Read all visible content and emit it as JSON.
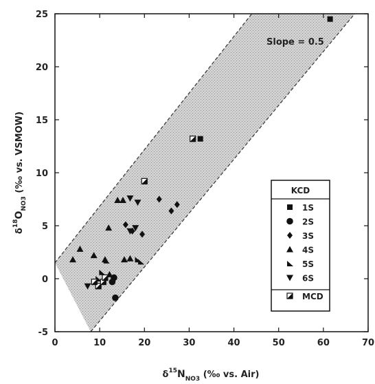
{
  "chart_data": {
    "type": "scatter",
    "title": "",
    "xlabel": {
      "main": "δ",
      "sup": "15",
      "sym": "N",
      "sub": "NO3",
      "rest": " (‰ vs. Air)"
    },
    "ylabel": {
      "main": "δ",
      "sup": "18",
      "sym": "O",
      "sub": "NO3",
      "rest": " (‰ vs. VSMOW)"
    },
    "xlim": [
      0,
      70
    ],
    "ylim": [
      -5,
      25
    ],
    "xticks": [
      0,
      10,
      20,
      30,
      40,
      50,
      60,
      70
    ],
    "yticks": [
      -5,
      0,
      5,
      10,
      15,
      20,
      25
    ],
    "grid": false,
    "band": {
      "slope": 0.5,
      "upper_line": [
        [
          0,
          1.5
        ],
        [
          44,
          25
        ]
      ],
      "lower_line": [
        [
          8,
          -5
        ],
        [
          67,
          25
        ]
      ],
      "label": "Slope = 0.5"
    },
    "legend": {
      "placement": "right",
      "title": "KCD",
      "entries": [
        {
          "label": "1S",
          "marker": "square"
        },
        {
          "label": "2S",
          "marker": "circle"
        },
        {
          "label": "3S",
          "marker": "diamond"
        },
        {
          "label": "4S",
          "marker": "triangle-up"
        },
        {
          "label": "5S",
          "marker": "right-triangle"
        },
        {
          "label": "6S",
          "marker": "triangle-down"
        },
        {
          "label": "MCD",
          "marker": "half-square"
        }
      ]
    },
    "series": [
      {
        "name": "1S",
        "marker": "square",
        "points": [
          [
            61.5,
            24.5
          ],
          [
            32.5,
            13.2
          ]
        ]
      },
      {
        "name": "2S",
        "marker": "circle",
        "points": [
          [
            13.2,
            0.1
          ],
          [
            13.5,
            -1.8
          ],
          [
            12.8,
            -0.3
          ]
        ]
      },
      {
        "name": "3S",
        "marker": "diamond",
        "points": [
          [
            23.3,
            7.5
          ],
          [
            27.3,
            7.0
          ],
          [
            26.0,
            6.4
          ],
          [
            15.8,
            5.1
          ],
          [
            17.3,
            4.5
          ],
          [
            19.5,
            4.2
          ]
        ]
      },
      {
        "name": "4S",
        "marker": "triangle-up",
        "points": [
          [
            14.0,
            7.4
          ],
          [
            15.2,
            7.4
          ],
          [
            12.0,
            4.8
          ],
          [
            5.6,
            2.8
          ],
          [
            8.7,
            2.2
          ],
          [
            4.0,
            1.8
          ],
          [
            11.2,
            1.8
          ],
          [
            15.5,
            1.8
          ],
          [
            16.8,
            1.9
          ],
          [
            12.2,
            0.4
          ]
        ]
      },
      {
        "name": "5S",
        "marker": "right-triangle",
        "points": [
          [
            11.5,
            1.7
          ],
          [
            18.5,
            1.8
          ],
          [
            19.2,
            1.6
          ],
          [
            9.7,
            0.0
          ],
          [
            10.5,
            0.6
          ]
        ]
      },
      {
        "name": "6S",
        "marker": "triangle-down",
        "points": [
          [
            16.8,
            7.6
          ],
          [
            18.5,
            7.2
          ],
          [
            18.0,
            4.8
          ],
          [
            16.8,
            4.5
          ],
          [
            7.3,
            -0.7
          ]
        ]
      },
      {
        "name": "MCD",
        "marker": "half-square",
        "points": [
          [
            20.0,
            9.2
          ],
          [
            30.8,
            13.2
          ],
          [
            9.7,
            -0.7
          ],
          [
            10.8,
            -0.3
          ],
          [
            8.8,
            -0.3
          ],
          [
            11.2,
            0.1
          ]
        ]
      }
    ]
  }
}
